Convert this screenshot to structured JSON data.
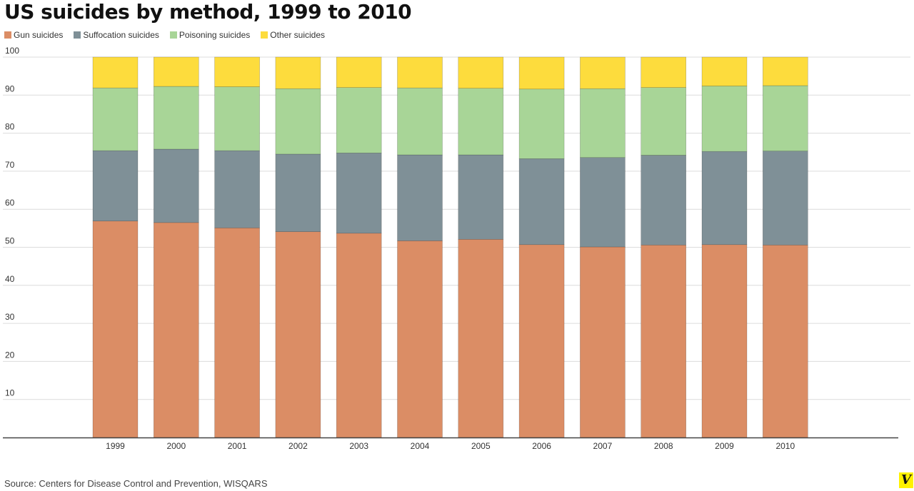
{
  "title": "US suicides by method, 1999 to 2010",
  "source": "Source: Centers for Disease Control and Prevention, WISQARS",
  "logo_text": "V",
  "chart_data": {
    "type": "bar",
    "stacked": true,
    "title": "US suicides by method, 1999 to 2010",
    "xlabel": "",
    "ylabel": "",
    "ylim": [
      0,
      100
    ],
    "yticks": [
      10,
      20,
      30,
      40,
      50,
      60,
      70,
      80,
      90,
      100
    ],
    "grid": true,
    "legend_position": "top-left",
    "categories": [
      "1999",
      "2000",
      "2001",
      "2002",
      "2003",
      "2004",
      "2005",
      "2006",
      "2007",
      "2008",
      "2009",
      "2010"
    ],
    "series": [
      {
        "name": "Gun suicides",
        "color": "#db8d65",
        "values": [
          56.9,
          56.5,
          55.1,
          54.1,
          53.7,
          51.7,
          52.1,
          50.7,
          50.1,
          50.6,
          50.7,
          50.6
        ]
      },
      {
        "name": "Suffocation suicides",
        "color": "#7f9097",
        "values": [
          18.5,
          19.3,
          20.3,
          20.4,
          21.1,
          22.6,
          22.2,
          22.6,
          23.5,
          23.6,
          24.5,
          24.7
        ]
      },
      {
        "name": "Poisoning suicides",
        "color": "#a8d597",
        "values": [
          16.5,
          16.5,
          16.8,
          17.2,
          17.2,
          17.6,
          17.5,
          18.3,
          18.1,
          17.8,
          17.2,
          17.2
        ]
      },
      {
        "name": "Other suicides",
        "color": "#fddc3d",
        "values": [
          8.1,
          7.7,
          7.8,
          8.3,
          8.0,
          8.1,
          8.2,
          8.4,
          8.3,
          8.0,
          7.6,
          7.5
        ]
      }
    ]
  }
}
